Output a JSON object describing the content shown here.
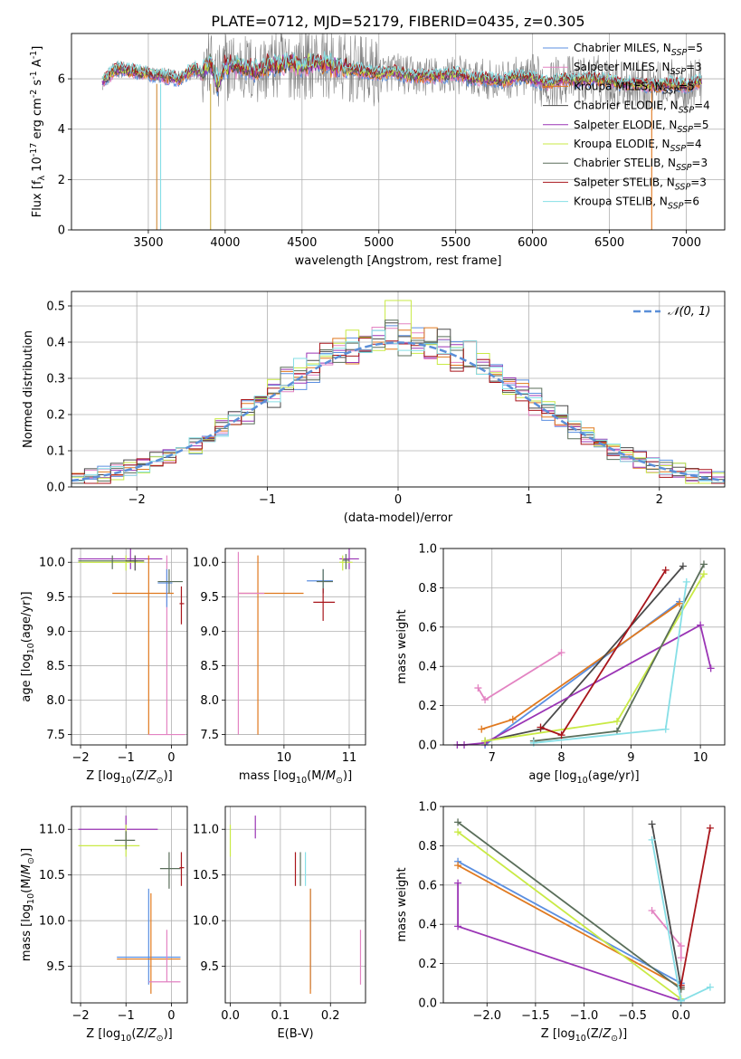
{
  "title": "PLATE=0712, MJD=52179, FIBERID=0435, z=0.305",
  "colors": {
    "chabrier_miles": "#5b8fe0",
    "salpeter_miles": "#e383c2",
    "kroupa_miles": "#e0791f",
    "chabrier_elodie": "#4a4a4a",
    "salpeter_elodie": "#9a34b5",
    "kroupa_elodie": "#c9ea45",
    "chabrier_stelib": "#5a6e5a",
    "salpeter_stelib": "#a8151b",
    "kroupa_stelib": "#86dfe6",
    "data_gray": "#808080",
    "normal_dashed": "#5b8fd8"
  },
  "legend_spectrum": [
    "Chabrier MILES, N_SSP=5",
    "Salpeter MILES, N_SSP=3",
    "Kroupa MILES, N_SSP=5",
    "Chabrier ELODIE, N_SSP=4",
    "Salpeter ELODIE, N_SSP=5",
    "Kroupa ELODIE, N_SSP=4",
    "Chabrier STELIB, N_SSP=3",
    "Salpeter STELIB, N_SSP=3",
    "Kroupa STELIB, N_SSP=6"
  ],
  "chart_data": [
    {
      "type": "line",
      "panel": "spectrum",
      "xlabel": "wavelength [Angstrom, rest frame]",
      "ylabel": "Flux [f_λ 10^-17 erg cm^-2 s^-1 A^-1]",
      "xlim": [
        3000,
        7250
      ],
      "ylim": [
        0,
        7.8
      ],
      "xticks": [
        "3500",
        "4000",
        "4500",
        "5000",
        "5500",
        "6000",
        "6500",
        "7000"
      ],
      "yticks": [
        "0",
        "2",
        "4",
        "6"
      ],
      "model_envelope": {
        "x": [
          3200,
          3300,
          3400,
          3500,
          3600,
          3700,
          3800,
          3850,
          3900,
          3950,
          4000,
          4100,
          4200,
          4300,
          4400,
          4500,
          4600,
          4700,
          4800,
          4900,
          5000,
          5100,
          5200,
          5300,
          5400,
          5500,
          5600,
          5700,
          5800,
          5900,
          6000,
          6100,
          6200,
          6300,
          6400,
          6500,
          6600,
          6700,
          6800,
          6900,
          7000,
          7100
        ],
        "y": [
          5.9,
          6.4,
          6.3,
          6.2,
          6.1,
          6.0,
          6.4,
          6.2,
          6.7,
          5.8,
          6.5,
          6.5,
          6.3,
          6.5,
          6.6,
          6.5,
          6.7,
          6.5,
          6.4,
          6.3,
          6.2,
          6.3,
          6.1,
          6.1,
          6.1,
          6.2,
          6.0,
          6.0,
          5.9,
          6.1,
          6.0,
          5.8,
          6.0,
          5.9,
          6.0,
          5.9,
          5.8,
          5.8,
          5.7,
          5.8,
          5.7,
          5.9
        ]
      }
    },
    {
      "type": "line",
      "panel": "residuals",
      "xlabel": "(data-model)/error",
      "ylabel": "Normed distribution",
      "xlim": [
        -2.5,
        2.5
      ],
      "ylim": [
        0,
        0.54
      ],
      "xticks": [
        "−2",
        "−1",
        "0",
        "1",
        "2"
      ],
      "yticks": [
        "0.0",
        "0.1",
        "0.2",
        "0.3",
        "0.4",
        "0.5"
      ],
      "legend": "𝒩(0, 1)",
      "bin_width": 0.1
    },
    {
      "type": "scatter",
      "panel": "age_vs_Z",
      "xlabel": "Z [log10(Z/Z⊙)]",
      "ylabel": "age  [log10(age/yr)]",
      "xlim": [
        -2.2,
        0.35
      ],
      "ylim": [
        7.35,
        10.2
      ],
      "xticks": [
        "−2",
        "−1",
        "0"
      ],
      "yticks": [
        "7.5",
        "8.0",
        "8.5",
        "9.0",
        "9.5",
        "10.0"
      ],
      "points": [
        {
          "series": "salpeter_elodie",
          "x": -0.9,
          "y": 10.05,
          "xlo": -2.05,
          "xhi": -0.2,
          "ylo": 9.9,
          "yhi": 10.2
        },
        {
          "series": "kroupa_elodie",
          "x": -1.0,
          "y": 10.0,
          "xlo": -2.05,
          "xhi": -0.6,
          "ylo": 9.88,
          "yhi": 10.1
        },
        {
          "series": "chabrier_stelib",
          "x": -1.3,
          "y": 10.02,
          "xlo": -2.05,
          "xhi": -0.75,
          "ylo": 9.9,
          "yhi": 10.1
        },
        {
          "series": "chabrier_elodie",
          "x": -0.8,
          "y": 10.02,
          "xlo": -1.0,
          "xhi": -0.6,
          "ylo": 9.88,
          "yhi": 10.1
        },
        {
          "series": "kroupa_miles",
          "x": -0.5,
          "y": 9.55,
          "xlo": -1.3,
          "xhi": 0.05,
          "ylo": 7.5,
          "yhi": 10.1
        },
        {
          "series": "salpeter_miles",
          "x": -0.1,
          "y": 7.5,
          "xlo": -0.5,
          "xhi": 0.3,
          "ylo": 7.5,
          "yhi": 10.1
        },
        {
          "series": "chabrier_miles",
          "x": -0.1,
          "y": 9.7,
          "xlo": -0.3,
          "xhi": 0.02,
          "ylo": 9.35,
          "yhi": 9.9
        },
        {
          "series": "chabrier_stelib",
          "x": -0.05,
          "y": 9.72,
          "xlo": -0.3,
          "xhi": 0.25,
          "ylo": 9.55,
          "yhi": 9.9
        },
        {
          "series": "salpeter_stelib",
          "x": 0.22,
          "y": 9.4,
          "xlo": 0.18,
          "xhi": 0.28,
          "ylo": 9.1,
          "yhi": 9.65
        }
      ]
    },
    {
      "type": "scatter",
      "panel": "age_vs_mass",
      "xlabel": "mass [log10(M/M⊙)]",
      "ylabel": "",
      "xlim": [
        9.1,
        11.25
      ],
      "ylim": [
        7.35,
        10.2
      ],
      "xticks": [
        "10",
        "11"
      ],
      "yticks": [
        "7.5",
        "8.0",
        "8.5",
        "9.0",
        "9.5",
        "10.0"
      ],
      "points": [
        {
          "series": "kroupa_miles",
          "x": 9.6,
          "y": 9.55,
          "xlo": 9.3,
          "xhi": 10.3,
          "ylo": 7.5,
          "yhi": 10.1
        },
        {
          "series": "salpeter_miles",
          "x": 9.3,
          "y": 9.55,
          "xlo": 9.3,
          "xhi": 9.7,
          "ylo": 7.5,
          "yhi": 10.15
        },
        {
          "series": "chabrier_miles",
          "x": 10.6,
          "y": 9.73,
          "xlo": 10.35,
          "xhi": 10.75,
          "ylo": 9.55,
          "yhi": 9.9
        },
        {
          "series": "chabrier_stelib",
          "x": 10.6,
          "y": 9.72,
          "xlo": 10.5,
          "xhi": 10.75,
          "ylo": 9.55,
          "yhi": 9.9
        },
        {
          "series": "salpeter_stelib",
          "x": 10.6,
          "y": 9.42,
          "xlo": 10.45,
          "xhi": 10.78,
          "ylo": 9.15,
          "yhi": 9.62
        },
        {
          "series": "salpeter_elodie",
          "x": 11.0,
          "y": 10.05,
          "xlo": 10.85,
          "xhi": 11.15,
          "ylo": 9.9,
          "yhi": 10.2
        },
        {
          "series": "kroupa_elodie",
          "x": 10.9,
          "y": 10.0,
          "xlo": 10.85,
          "xhi": 11.05,
          "ylo": 9.88,
          "yhi": 10.1
        },
        {
          "series": "chabrier_stelib",
          "x": 10.95,
          "y": 10.03,
          "xlo": 10.9,
          "xhi": 11.0,
          "ylo": 9.9,
          "yhi": 10.12
        }
      ]
    },
    {
      "type": "line",
      "panel": "mass_weight_vs_age",
      "xlabel": "age  [log10(age/yr)]",
      "ylabel": "mass weight",
      "xlim": [
        6.3,
        10.35
      ],
      "ylim": [
        0,
        1.0
      ],
      "xticks": [
        "7",
        "8",
        "9",
        "10"
      ],
      "yticks": [
        "0.0",
        "0.2",
        "0.4",
        "0.6",
        "0.8",
        "1.0"
      ],
      "series": [
        {
          "key": "chabrier_miles",
          "x": [
            6.9,
            9.7
          ],
          "y": [
            0.0,
            0.73
          ]
        },
        {
          "key": "salpeter_miles",
          "x": [
            6.8,
            6.9,
            8.0
          ],
          "y": [
            0.29,
            0.23,
            0.47
          ]
        },
        {
          "key": "kroupa_miles",
          "x": [
            6.85,
            7.3,
            9.7
          ],
          "y": [
            0.08,
            0.13,
            0.72
          ]
        },
        {
          "key": "chabrier_elodie",
          "x": [
            6.9,
            7.7,
            9.75
          ],
          "y": [
            0.02,
            0.08,
            0.91
          ]
        },
        {
          "key": "salpeter_elodie",
          "x": [
            6.5,
            6.6,
            6.9,
            10.0,
            10.15
          ],
          "y": [
            0.0,
            0.0,
            0.01,
            0.61,
            0.39
          ]
        },
        {
          "key": "kroupa_elodie",
          "x": [
            6.9,
            8.8,
            10.05
          ],
          "y": [
            0.02,
            0.12,
            0.87
          ]
        },
        {
          "key": "chabrier_stelib",
          "x": [
            7.6,
            8.8,
            10.05
          ],
          "y": [
            0.02,
            0.07,
            0.92
          ]
        },
        {
          "key": "salpeter_stelib",
          "x": [
            7.7,
            8.0,
            9.5
          ],
          "y": [
            0.09,
            0.05,
            0.89
          ]
        },
        {
          "key": "kroupa_stelib",
          "x": [
            7.6,
            9.5,
            9.8
          ],
          "y": [
            0.01,
            0.08,
            0.83
          ]
        }
      ]
    },
    {
      "type": "scatter",
      "panel": "mass_vs_Z",
      "xlabel": "Z [log10(Z/Z⊙)]",
      "ylabel": "mass [log10(M/M⊙)]",
      "xlim": [
        -2.2,
        0.35
      ],
      "ylim": [
        9.1,
        11.25
      ],
      "xticks": [
        "−2",
        "−1",
        "0"
      ],
      "yticks": [
        "9.5",
        "10.0",
        "10.5",
        "11.0"
      ],
      "points": [
        {
          "series": "salpeter_elodie",
          "x": -1.0,
          "y": 11.0,
          "xlo": -2.05,
          "xhi": -0.3,
          "ylo": 10.85,
          "yhi": 11.15
        },
        {
          "series": "kroupa_elodie",
          "x": -1.0,
          "y": 10.82,
          "xlo": -2.05,
          "xhi": -0.7,
          "ylo": 10.7,
          "yhi": 11.05
        },
        {
          "series": "chabrier_stelib",
          "x": -1.0,
          "y": 10.88,
          "xlo": -1.25,
          "xhi": -0.8,
          "ylo": 10.78,
          "yhi": 10.98
        },
        {
          "series": "chabrier_stelib",
          "x": -0.05,
          "y": 10.57,
          "xlo": -0.25,
          "xhi": 0.2,
          "ylo": 10.35,
          "yhi": 10.75
        },
        {
          "series": "salpeter_stelib",
          "x": 0.22,
          "y": 10.58,
          "xlo": 0.18,
          "xhi": 0.28,
          "ylo": 10.38,
          "yhi": 10.75
        },
        {
          "series": "chabrier_miles",
          "x": -0.5,
          "y": 9.6,
          "xlo": -1.2,
          "xhi": 0.2,
          "ylo": 9.3,
          "yhi": 10.35
        },
        {
          "series": "kroupa_miles",
          "x": -0.45,
          "y": 9.58,
          "xlo": -1.2,
          "xhi": 0.2,
          "ylo": 9.2,
          "yhi": 10.3
        },
        {
          "series": "salpeter_miles",
          "x": -0.1,
          "y": 9.33,
          "xlo": -0.5,
          "xhi": 0.2,
          "ylo": 9.33,
          "yhi": 9.9
        }
      ]
    },
    {
      "type": "scatter",
      "panel": "mass_vs_ebv",
      "xlabel": "E(B-V)",
      "ylabel": "",
      "xlim": [
        -0.01,
        0.27
      ],
      "ylim": [
        9.1,
        11.25
      ],
      "xticks": [
        "0.0",
        "0.1",
        "0.2"
      ],
      "yticks": [
        "9.5",
        "10.0",
        "10.5",
        "11.0"
      ],
      "points": [
        {
          "series": "kroupa_elodie",
          "x": 0.0,
          "y": 10.88,
          "ylo": 10.7,
          "yhi": 11.05
        },
        {
          "series": "salpeter_elodie",
          "x": 0.05,
          "y": 11.0,
          "ylo": 10.9,
          "yhi": 11.15
        },
        {
          "series": "salpeter_stelib",
          "x": 0.13,
          "y": 10.58,
          "ylo": 10.38,
          "yhi": 10.75
        },
        {
          "series": "chabrier_stelib",
          "x": 0.14,
          "y": 10.57,
          "ylo": 10.38,
          "yhi": 10.75
        },
        {
          "series": "kroupa_stelib",
          "x": 0.15,
          "y": 10.58,
          "ylo": 10.38,
          "yhi": 10.75
        },
        {
          "series": "chabrier_miles",
          "x": 0.16,
          "y": 9.7,
          "ylo": 9.25,
          "yhi": 10.35
        },
        {
          "series": "kroupa_miles",
          "x": 0.16,
          "y": 9.6,
          "ylo": 9.2,
          "yhi": 10.35
        },
        {
          "series": "salpeter_miles",
          "x": 0.26,
          "y": 9.6,
          "ylo": 9.3,
          "yhi": 9.9
        }
      ]
    },
    {
      "type": "line",
      "panel": "mass_weight_vs_Z",
      "xlabel": "Z [log10(Z/Z⊙)]",
      "ylabel": "mass weight",
      "xlim": [
        -2.45,
        0.45
      ],
      "ylim": [
        0,
        1.0
      ],
      "xticks": [
        "−2.0",
        "−1.5",
        "−1.0",
        "−0.5",
        "0.0"
      ],
      "yticks": [
        "0.0",
        "0.2",
        "0.4",
        "0.6",
        "0.8",
        "1.0"
      ],
      "series": [
        {
          "key": "chabrier_miles",
          "x": [
            -2.3,
            0.0
          ],
          "y": [
            0.72,
            0.1
          ]
        },
        {
          "key": "salpeter_miles",
          "x": [
            -0.3,
            0.0,
            0.0
          ],
          "y": [
            0.47,
            0.29,
            0.23
          ]
        },
        {
          "key": "kroupa_miles",
          "x": [
            -2.3,
            0.0
          ],
          "y": [
            0.7,
            0.08
          ]
        },
        {
          "key": "chabrier_elodie",
          "x": [
            -0.3,
            0.0
          ],
          "y": [
            0.91,
            0.08
          ]
        },
        {
          "key": "salpeter_elodie",
          "x": [
            -2.3,
            -2.3,
            0.0
          ],
          "y": [
            0.61,
            0.39,
            0.01
          ]
        },
        {
          "key": "kroupa_elodie",
          "x": [
            -2.3,
            0.0
          ],
          "y": [
            0.87,
            0.02
          ]
        },
        {
          "key": "chabrier_stelib",
          "x": [
            -2.3,
            0.0
          ],
          "y": [
            0.92,
            0.07
          ]
        },
        {
          "key": "salpeter_stelib",
          "x": [
            0.0,
            0.3
          ],
          "y": [
            0.09,
            0.89
          ]
        },
        {
          "key": "kroupa_stelib",
          "x": [
            -0.3,
            0.0,
            0.3
          ],
          "y": [
            0.83,
            0.01,
            0.08
          ]
        }
      ]
    }
  ]
}
